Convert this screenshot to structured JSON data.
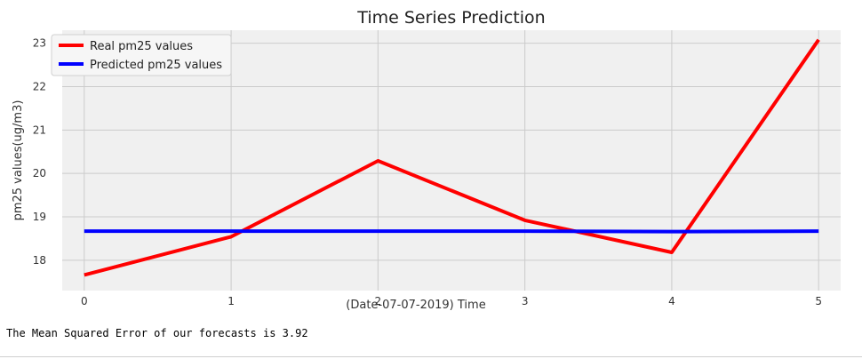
{
  "chart_data": {
    "type": "line",
    "title": "Time Series Prediction",
    "xlabel": "(Date-07-07-2019)  Time",
    "ylabel": "pm25 values(ug/m3)",
    "x": [
      0,
      1,
      2,
      3,
      4,
      5
    ],
    "xlim": [
      -0.15,
      5.15
    ],
    "ylim": [
      17.3,
      23.3
    ],
    "xticks": [
      0,
      1,
      2,
      3,
      4,
      5
    ],
    "yticks": [
      18,
      19,
      20,
      21,
      22,
      23
    ],
    "grid": true,
    "legend_position": "top-left",
    "background": "#f0f0f0",
    "series": [
      {
        "name": "Real pm25 values",
        "color": "#ff0000",
        "values": [
          17.66,
          18.54,
          20.29,
          18.92,
          18.18,
          23.08
        ]
      },
      {
        "name": "Predicted pm25 values",
        "color": "#0000ff",
        "values": [
          18.67,
          18.67,
          18.67,
          18.67,
          18.66,
          18.67
        ]
      }
    ]
  },
  "output": {
    "mse_text": "The Mean Squared Error of our forecasts is 3.92"
  }
}
